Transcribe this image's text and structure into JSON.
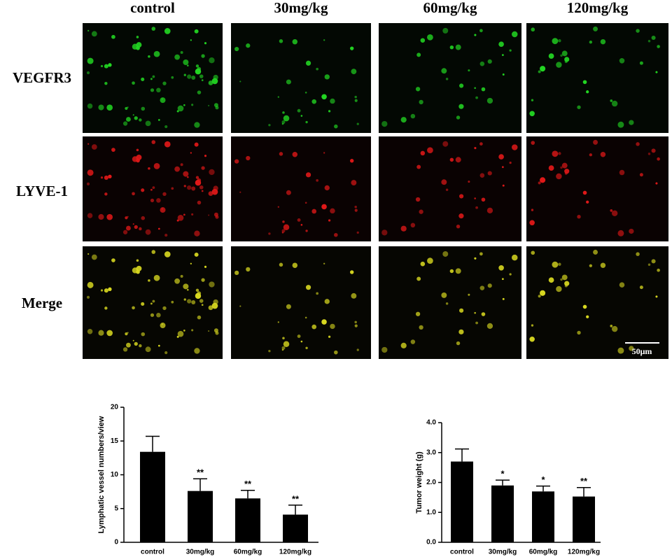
{
  "figure": {
    "columns": [
      "control",
      "30mg/kg",
      "60mg/kg",
      "120mg/kg"
    ],
    "rows": [
      "VEGFR3",
      "LYVE-1",
      "Merge"
    ],
    "scale_bar": "50μm"
  },
  "chart_data": [
    {
      "type": "bar",
      "y_label": "Lymphatic vessel numbers/view",
      "categories": [
        "control",
        "30mg/kg",
        "60mg/kg",
        "120mg/kg"
      ],
      "values": [
        13.4,
        7.6,
        6.5,
        4.1
      ],
      "errors": [
        2.3,
        1.8,
        1.2,
        1.4
      ],
      "significance": [
        null,
        "**",
        "**",
        "**"
      ],
      "color": "#000000",
      "ylim": [
        0,
        20
      ],
      "yticks": [
        0,
        5,
        10,
        15,
        20
      ]
    },
    {
      "type": "bar",
      "y_label": "Tumor weight (g)",
      "categories": [
        "control",
        "30mg/kg",
        "60mg/kg",
        "120mg/kg"
      ],
      "values": [
        2.7,
        1.9,
        1.7,
        1.53
      ],
      "errors": [
        0.42,
        0.18,
        0.18,
        0.3
      ],
      "significance": [
        null,
        "*",
        "*",
        "**"
      ],
      "color": "#000000",
      "ylim": [
        0,
        4
      ],
      "yticks": [
        {
          "value": 0,
          "label": "0.0"
        },
        {
          "value": 1,
          "label": "1.0"
        },
        {
          "value": 2,
          "label": "2.0"
        },
        {
          "value": 3,
          "label": "3.0"
        },
        {
          "value": 4,
          "label": "4.0"
        }
      ]
    }
  ]
}
